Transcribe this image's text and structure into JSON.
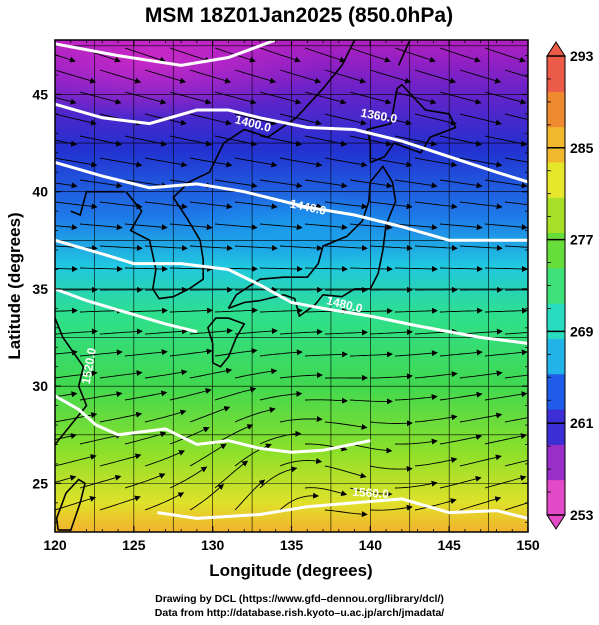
{
  "title": "MSM 18Z01Jan2025 (850.0hPa)",
  "x_axis": {
    "label": "Longitude (degrees)",
    "range": [
      120,
      150
    ],
    "ticks": [
      120,
      125,
      130,
      135,
      140,
      145,
      150
    ]
  },
  "y_axis": {
    "label": "Latitude  (degrees)",
    "range": [
      22.5,
      47.8
    ],
    "ticks": [
      25,
      30,
      35,
      40,
      45
    ]
  },
  "colorbar": {
    "ticks": [
      253,
      261,
      269,
      277,
      285,
      293
    ],
    "range": [
      253,
      293
    ],
    "colors": [
      "#e34ac8",
      "#9a2ec8",
      "#3b2fd4",
      "#1f5de8",
      "#22b4e8",
      "#28dcc0",
      "#3ee07a",
      "#66dd3a",
      "#a8e028",
      "#e6e62a",
      "#f0b82c",
      "#f08a30",
      "#ec5a4a"
    ]
  },
  "contours": {
    "color": "#ffffff",
    "labels": [
      "1360.0",
      "1400.0",
      "1440.0",
      "1480.0",
      "1520.0",
      "1560.0"
    ]
  },
  "credits": {
    "line1": "Drawing by DCL (https://www.gfd–dennou.org/library/dcl/)",
    "line2": "Data from http://database.rish.kyoto–u.ac.jp/arch/jmadata/"
  }
}
